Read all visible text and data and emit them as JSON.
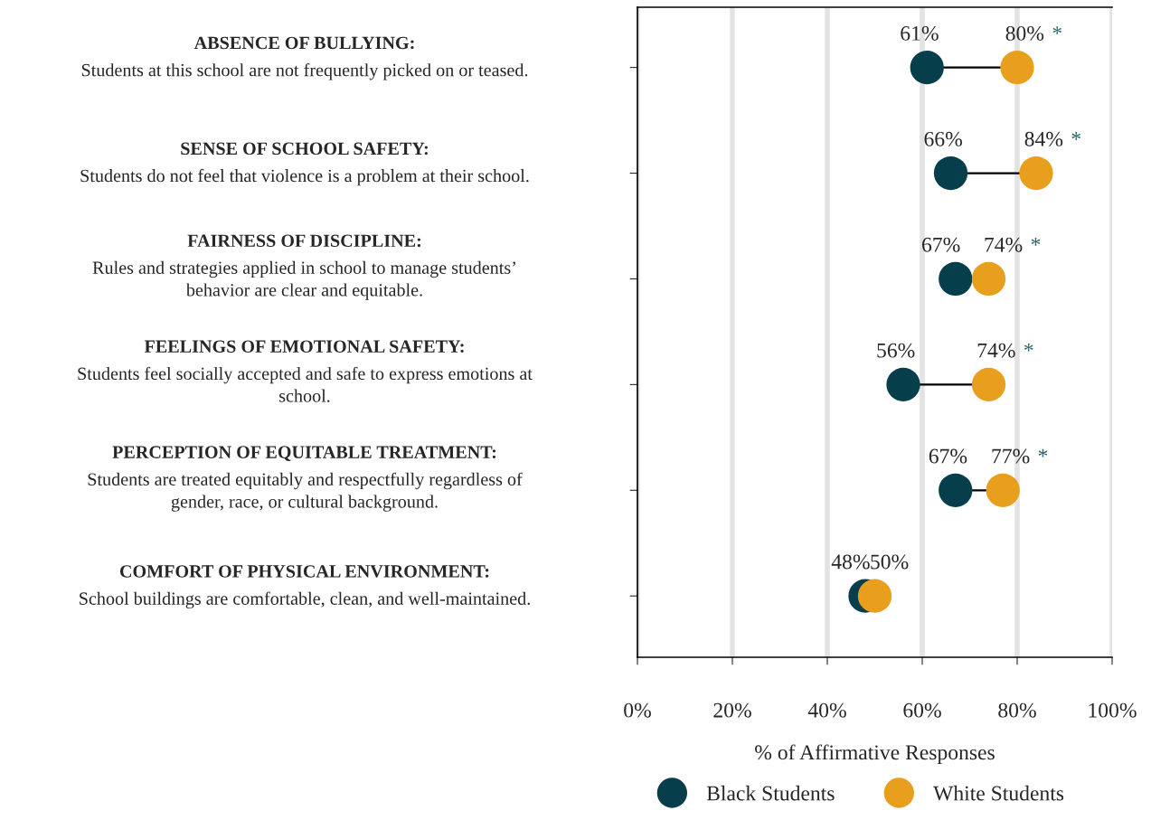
{
  "chart_data": {
    "type": "scatter",
    "orientation": "horizontal",
    "categories": [
      "ABSENCE OF BULLYING:\nStudents at this school are not frequently picked on or teased.",
      "SENSE OF SCHOOL SAFETY:\nStudents do not feel that violence is a problem at their school.",
      "FAIRNESS OF DISCIPLINE:\nRules and strategies applied in school to manage students’\nbehavior are clear and equitable.",
      "FEELINGS OF EMOTIONAL SAFETY:\nStudents feel socially accepted and safe to express emotions at\nschool.",
      "PERCEPTION OF EQUITABLE TREATMENT:\nStudents are treated equitably and respectfully regardless of\ngender, race, or cultural background.",
      "COMFORT OF PHYSICAL ENVIRONMENT:\nSchool buildings are comfortable, clean, and well-maintained."
    ],
    "series": [
      {
        "name": "Black Students",
        "color": "#063f4b",
        "values": [
          61,
          66,
          67,
          56,
          67,
          48
        ],
        "value_labels": [
          "61%",
          "66%",
          "67%",
          "56%",
          "67%",
          "48%"
        ]
      },
      {
        "name": "White Students",
        "color": "#e89f1e",
        "values": [
          80,
          84,
          74,
          74,
          77,
          50
        ],
        "value_labels": [
          "80% *",
          "84% *",
          "74% *",
          "74% *",
          "77% *",
          "50%"
        ]
      }
    ],
    "xlabel": "% of Affirmative Responses",
    "xlim": [
      0,
      100
    ],
    "xticks": [
      {
        "value": 0,
        "label": "0%"
      },
      {
        "value": 20,
        "label": "20%"
      },
      {
        "value": 40,
        "label": "40%"
      },
      {
        "value": 60,
        "label": "60%"
      },
      {
        "value": 80,
        "label": "80%"
      },
      {
        "value": 100,
        "label": "100%"
      }
    ],
    "grid": "x",
    "legend": "bottom",
    "marker": "circle"
  }
}
